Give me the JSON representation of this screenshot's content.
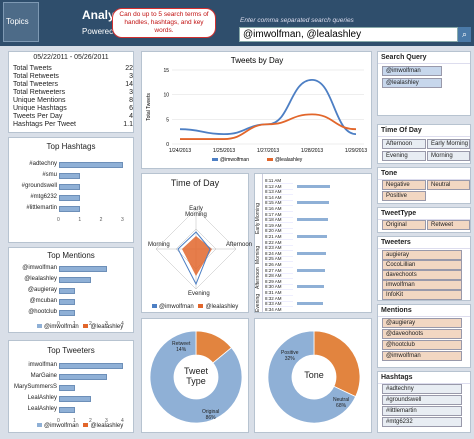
{
  "header": {
    "logo": "Topics",
    "title": "Analy",
    "subtitle": "Powerec",
    "callout": "Can do up to 5 search terms of handles, hashtags, and key words.",
    "search_label": "Enter comma separated search queries",
    "search_value": "@imwolfman, @lealashley"
  },
  "stats": {
    "date_range": "05/22/2011 - 05/26/2011",
    "rows": [
      [
        "Total Tweets",
        "22"
      ],
      [
        "Total Retweets",
        "3"
      ],
      [
        "Total Tweeters",
        "14"
      ],
      [
        "Total Retweeters",
        "3"
      ],
      [
        "Unique Mentions",
        "8"
      ],
      [
        "Unique Hashtags",
        "6"
      ],
      [
        "Tweets Per Day",
        "4"
      ],
      [
        "Hashtags Per Tweet",
        "1.1"
      ]
    ]
  },
  "hashtags": {
    "title": "Top Hashtags",
    "items": [
      {
        "label": "#adtechny",
        "value": 3
      },
      {
        "label": "#smu",
        "value": 1
      },
      {
        "label": "#groundswell",
        "value": 1
      },
      {
        "label": "#mtg6232",
        "value": 1
      },
      {
        "label": "#littlemartin",
        "value": 1
      }
    ],
    "ticks": [
      "0",
      "1",
      "2",
      "3"
    ]
  },
  "mentions": {
    "title": "Top Mentions",
    "items": [
      {
        "label": "@imwolfman",
        "value": 3
      },
      {
        "label": "@lealashley",
        "value": 2
      },
      {
        "label": "@augieray",
        "value": 1
      },
      {
        "label": "@mcuban",
        "value": 1
      },
      {
        "label": "@hootclub",
        "value": 1
      }
    ],
    "ticks": [
      "0",
      "1",
      "2",
      "3",
      "4"
    ]
  },
  "tweeters": {
    "title": "Top Tweeters",
    "items": [
      {
        "label": "imwolfman",
        "value": 4
      },
      {
        "label": "MarGaine",
        "value": 3
      },
      {
        "label": "MarySummersS",
        "value": 1
      },
      {
        "label": "LealAshley",
        "value": 2
      },
      {
        "label": "LealAshley",
        "value": 1
      }
    ],
    "ticks": [
      "0",
      "1",
      "2",
      "3",
      "4"
    ]
  },
  "legend": {
    "s1": "@imwolfman",
    "s2": "@lealashley"
  },
  "chart_data": {
    "type": "line",
    "title": "Tweets by Day",
    "ylabel": "Total Tweets",
    "categories": [
      "1/24/2013",
      "1/25/2013",
      "1/27/2013",
      "1/28/2013",
      "1/29/2013"
    ],
    "ylim": [
      0,
      15
    ],
    "yticks": [
      "0",
      "5",
      "10",
      "15"
    ],
    "series": [
      {
        "name": "@imwolfman",
        "values": [
          3,
          2,
          4,
          13,
          2
        ]
      },
      {
        "name": "@lealashley",
        "values": [
          1,
          1,
          4,
          6,
          3
        ]
      }
    ]
  },
  "timeofday": {
    "title": "Time of Day",
    "labels": [
      "Early Morning",
      "Afternoon",
      "Evening",
      "Morning"
    ]
  },
  "timeline": {
    "times": [
      "8:11 AM",
      "8:12 AM",
      "8:13 AM",
      "8:14 AM",
      "8:15 AM",
      "8:16 AM",
      "8:17 AM",
      "8:18 AM",
      "8:19 AM",
      "8:20 AM",
      "8:21 AM",
      "8:22 AM",
      "8:23 AM",
      "8:24 AM",
      "8:25 AM",
      "8:26 AM",
      "8:27 AM",
      "8:28 AM",
      "8:29 AM",
      "8:30 AM",
      "8:31 AM",
      "8:32 AM",
      "8:33 AM",
      "8:34 AM"
    ],
    "groups": [
      "Early Morning",
      "Morning",
      "Afternoon",
      "Evening"
    ]
  },
  "tweettype": {
    "title": "Tweet Type",
    "slices": [
      {
        "label": "Retweet",
        "pct": "14%",
        "value": 14
      },
      {
        "label": "Original",
        "pct": "86%",
        "value": 86
      }
    ]
  },
  "tone": {
    "title": "Tone",
    "slices": [
      {
        "label": "Positive",
        "pct": "32%",
        "value": 32
      },
      {
        "label": "Neutral",
        "pct": "68%",
        "value": 68
      }
    ]
  },
  "filters": {
    "search_query": {
      "title": "Search Query",
      "items": [
        "@imwolfman",
        "@lealashley"
      ]
    },
    "time_of_day": {
      "title": "Time Of Day",
      "items": [
        "Afternoon",
        "Early Morning",
        "Evening",
        "Morning"
      ]
    },
    "tone": {
      "title": "Tone",
      "items": [
        "Negative",
        "Neutral",
        "Positive"
      ]
    },
    "tweettype": {
      "title": "TweetType",
      "items": [
        "Original",
        "Retweet"
      ]
    },
    "tweeters": {
      "title": "Tweeters",
      "items": [
        "augieray",
        "CocoLillian",
        "davechoots",
        "imwolfman",
        "InfoKit"
      ]
    },
    "mentions": {
      "title": "Mentions",
      "items": [
        "@augieray",
        "@daveohoots",
        "@hootclub",
        "@imwolfman"
      ]
    },
    "hashtags": {
      "title": "Hashtags",
      "items": [
        "#adtechny",
        "#groundswell",
        "#littlemartin",
        "#mtg6232"
      ]
    }
  },
  "colors": {
    "blue": "#4d7fc4",
    "orange": "#e2662b"
  }
}
